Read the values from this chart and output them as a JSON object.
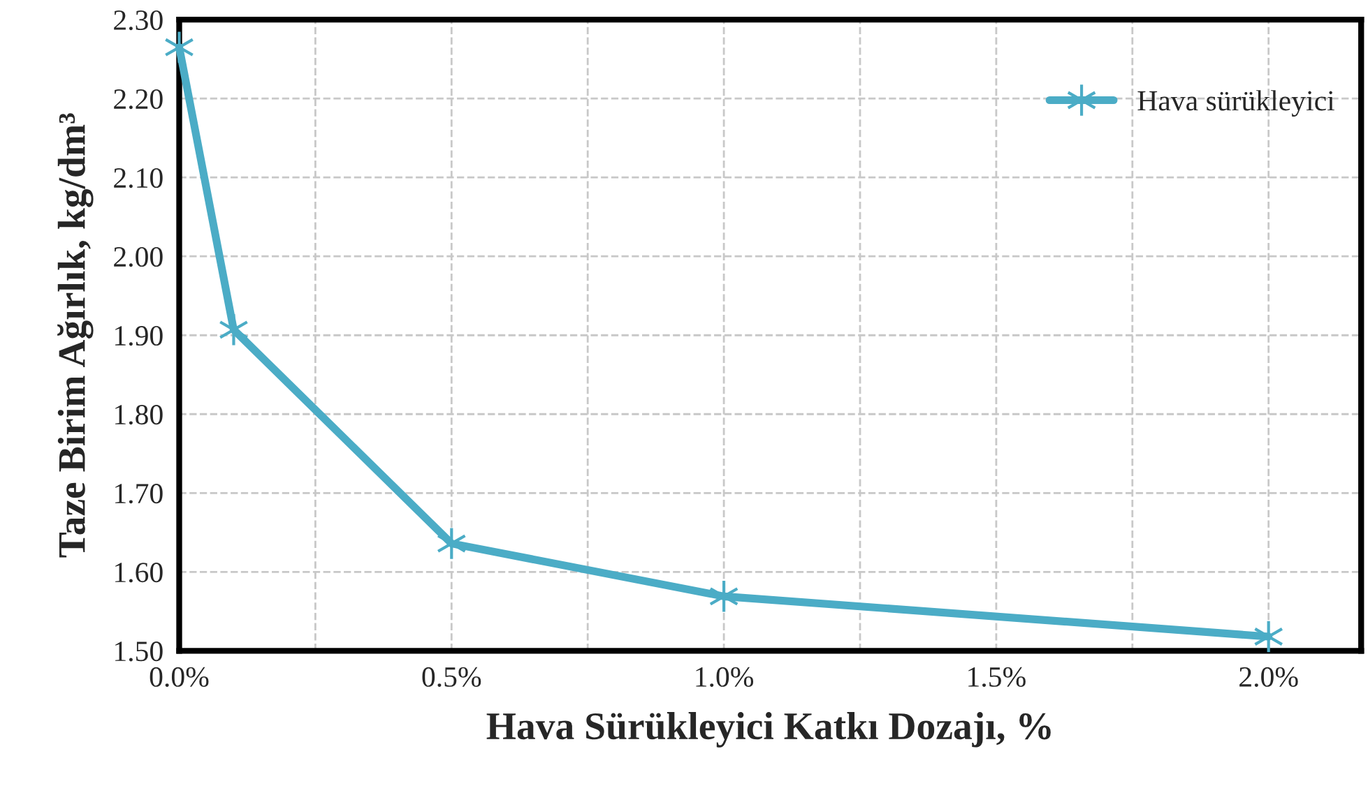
{
  "chart_data": {
    "type": "line",
    "xlabel": "Hava Sürükleyici Katkı Dozajı, %",
    "ylabel": "Taze Birim Ağırlık, kg/dm³",
    "x": [
      0,
      0.1,
      0.5,
      1.0,
      2.0
    ],
    "series": [
      {
        "name": "Hava sürükleyici",
        "color": "#4bacc6",
        "values": [
          2.265,
          1.907,
          1.636,
          1.569,
          1.518
        ]
      }
    ],
    "xlim": [
      0,
      2.17
    ],
    "ylim": [
      1.5,
      2.3
    ],
    "xticks": [
      {
        "value": 0,
        "label": "0.0%"
      },
      {
        "value": 0.25,
        "label": null
      },
      {
        "value": 0.5,
        "label": "0.5%"
      },
      {
        "value": 0.75,
        "label": null
      },
      {
        "value": 1.0,
        "label": "1.0%"
      },
      {
        "value": 1.25,
        "label": null
      },
      {
        "value": 1.5,
        "label": "1.5%"
      },
      {
        "value": 1.75,
        "label": null
      },
      {
        "value": 2.0,
        "label": "2.0%"
      }
    ],
    "yticks": [
      {
        "value": 1.5,
        "label": "1.50"
      },
      {
        "value": 1.6,
        "label": "1.60"
      },
      {
        "value": 1.7,
        "label": "1.70"
      },
      {
        "value": 1.8,
        "label": "1.80"
      },
      {
        "value": 1.9,
        "label": "1.90"
      },
      {
        "value": 2.0,
        "label": "2.00"
      },
      {
        "value": 2.1,
        "label": "2.10"
      },
      {
        "value": 2.2,
        "label": "2.20"
      },
      {
        "value": 2.3,
        "label": "2.30"
      }
    ],
    "grid": true,
    "legend": "top right",
    "marker": "cross",
    "line_style": "solid"
  }
}
